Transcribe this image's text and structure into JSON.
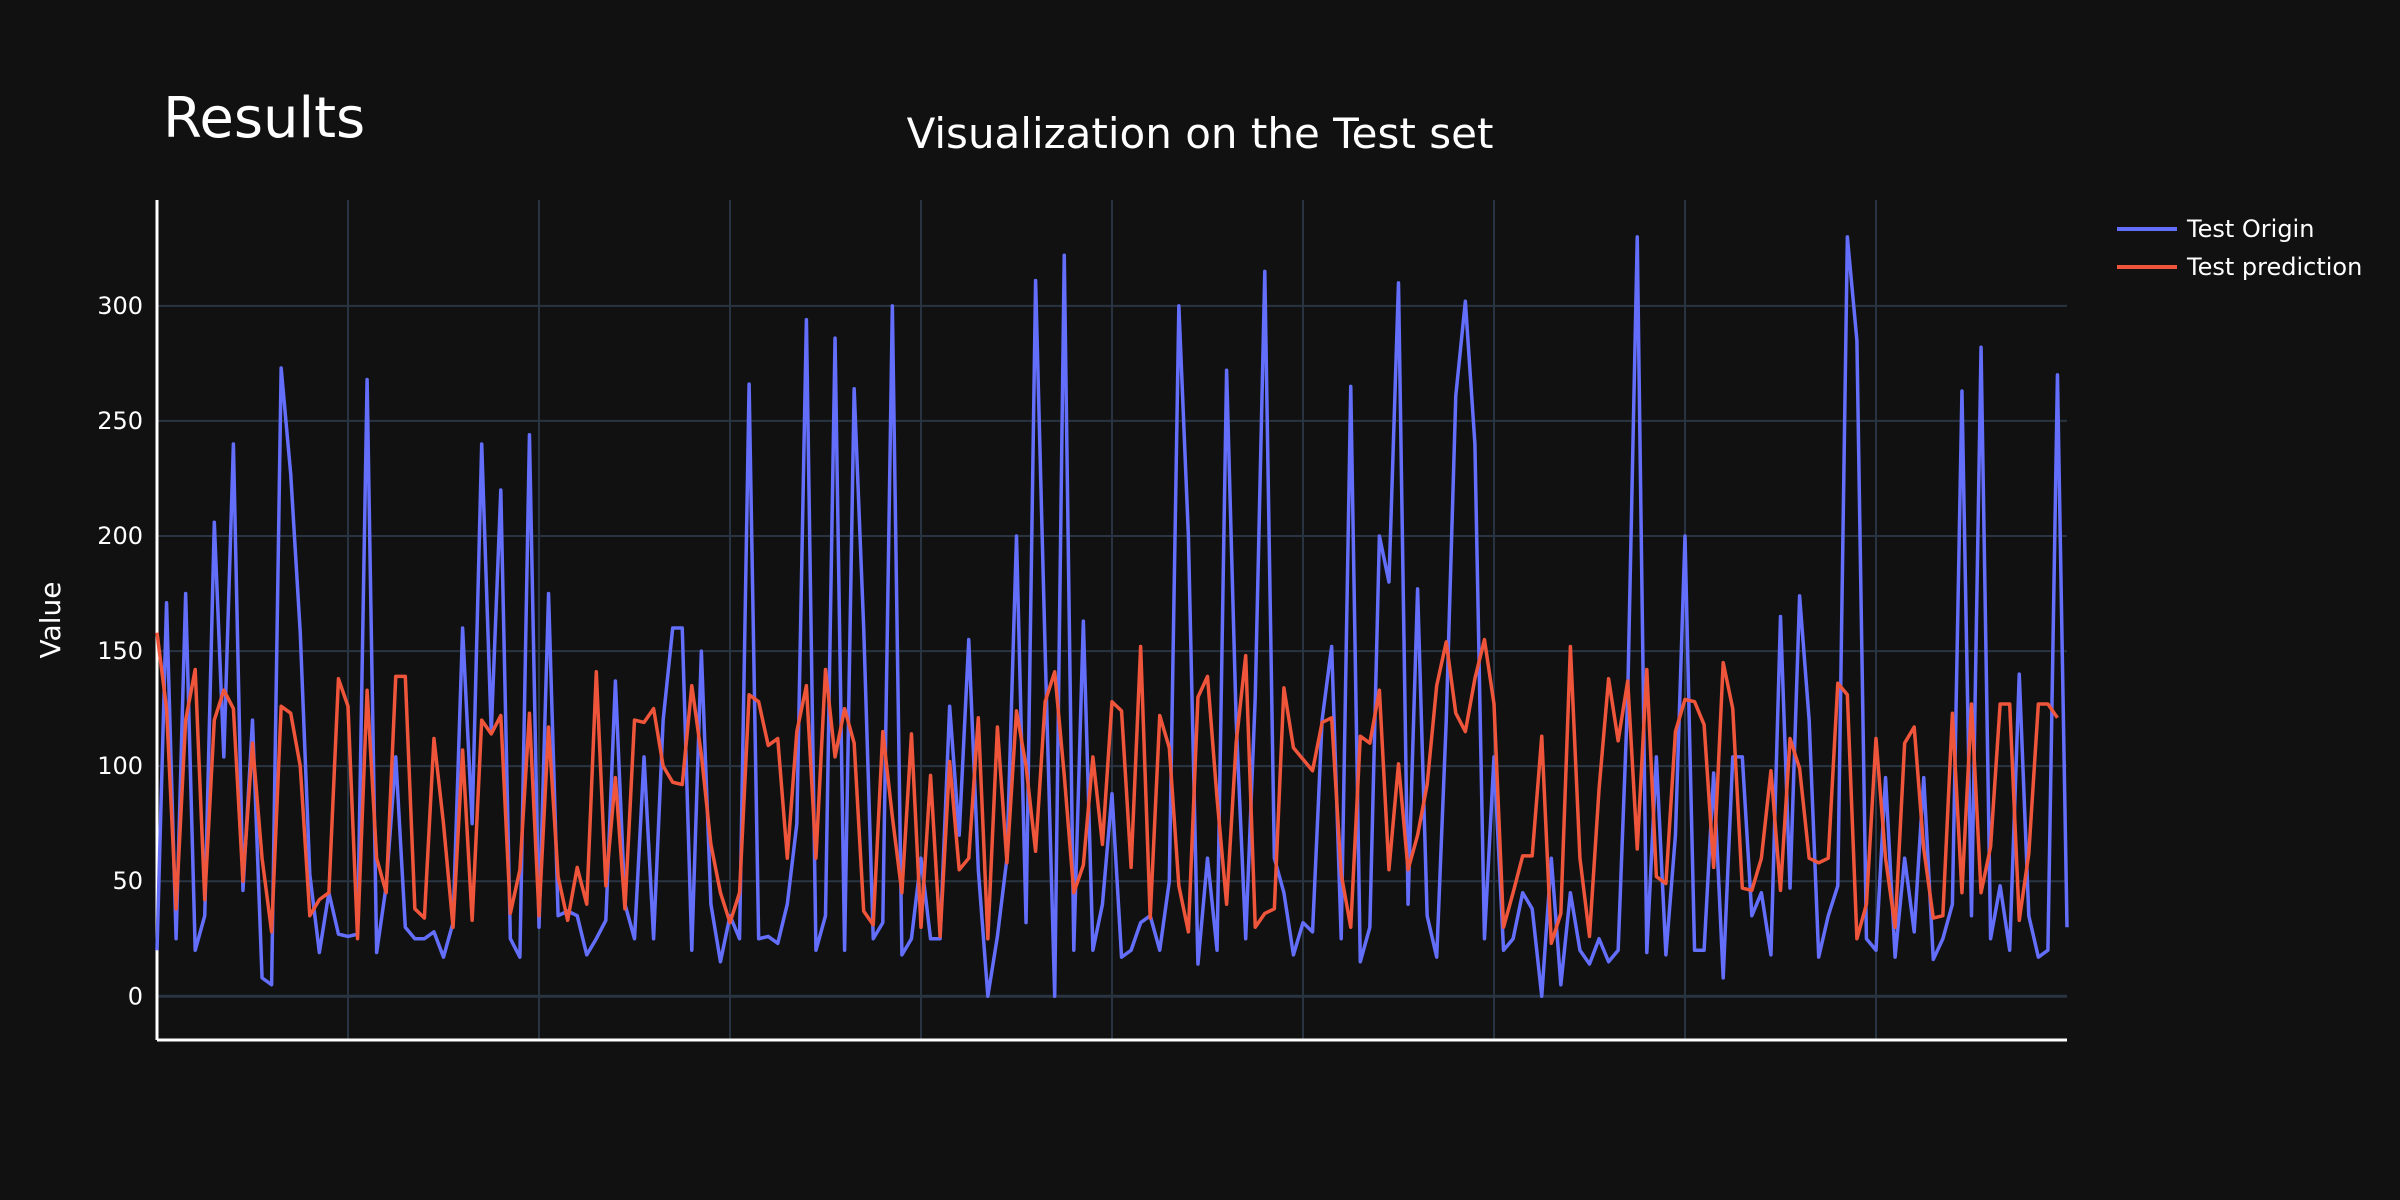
{
  "page": {
    "title": "Results"
  },
  "colors": {
    "background": "#111111",
    "grid": "#283442",
    "origin": "#636efa",
    "prediction": "#ef553b",
    "axis": "#ffffff"
  },
  "chart_data": {
    "type": "line",
    "title": "Visualization on the Test set",
    "xlabel": "",
    "ylabel": "Value",
    "ylim": [
      -19,
      346
    ],
    "xlim": [
      0,
      200
    ],
    "yticks": [
      0,
      50,
      100,
      150,
      200,
      250,
      300
    ],
    "grid": true,
    "legend_position": "top-right",
    "series": [
      {
        "name": "Test Origin",
        "values": [
          20,
          171,
          25,
          175,
          20,
          35,
          206,
          104,
          240,
          46,
          120,
          8,
          5,
          273,
          227,
          158,
          53,
          19,
          45,
          27,
          26,
          27,
          268,
          19,
          48,
          104,
          30,
          25,
          25,
          28,
          17,
          32,
          160,
          75,
          240,
          115,
          220,
          25,
          17,
          244,
          30,
          175,
          35,
          37,
          35,
          18,
          25,
          33,
          137,
          40,
          25,
          104,
          25,
          120,
          160,
          160,
          20,
          150,
          40,
          15,
          35,
          25,
          266,
          25,
          26,
          23,
          40,
          75,
          294,
          20,
          35,
          286,
          20,
          264,
          160,
          25,
          32,
          300,
          18,
          25,
          60,
          25,
          25,
          126,
          70,
          155,
          55,
          0,
          26,
          60,
          200,
          32,
          311,
          150,
          0,
          322,
          20,
          163,
          20,
          40,
          88,
          17,
          20,
          32,
          35,
          20,
          50,
          300,
          200,
          14,
          60,
          20,
          272,
          120,
          25,
          130,
          315,
          60,
          45,
          18,
          32,
          28,
          120,
          152,
          25,
          265,
          15,
          30,
          200,
          180,
          310,
          40,
          177,
          35,
          17,
          120,
          261,
          302,
          240,
          25,
          104,
          20,
          25,
          45,
          38,
          0,
          60,
          5,
          45,
          20,
          14,
          25,
          15,
          20,
          130,
          330,
          19,
          104,
          18,
          70,
          200,
          20,
          20,
          97,
          8,
          104,
          104,
          35,
          45,
          18,
          165,
          47,
          174,
          120,
          17,
          35,
          48,
          330,
          285,
          25,
          20,
          95,
          17,
          60,
          28,
          95,
          16,
          25,
          40,
          263,
          35,
          282,
          25,
          48,
          20,
          140,
          35,
          17,
          20,
          270,
          30
        ]
      },
      {
        "name": "Test prediction",
        "values": [
          158,
          125,
          38,
          120,
          142,
          42,
          120,
          133,
          125,
          50,
          110,
          60,
          28,
          126,
          123,
          100,
          35,
          42,
          45,
          138,
          126,
          25,
          133,
          60,
          45,
          139,
          139,
          38,
          34,
          112,
          75,
          30,
          107,
          33,
          120,
          114,
          122,
          36,
          55,
          123,
          35,
          117,
          52,
          33,
          56,
          40,
          141,
          48,
          95,
          38,
          120,
          119,
          125,
          100,
          93,
          92,
          135,
          105,
          66,
          45,
          32,
          45,
          131,
          128,
          109,
          112,
          60,
          115,
          135,
          60,
          142,
          104,
          125,
          110,
          37,
          31,
          115,
          78,
          45,
          114,
          30,
          96,
          26,
          102,
          55,
          60,
          121,
          25,
          117,
          58,
          124,
          100,
          63,
          128,
          141,
          96,
          45,
          57,
          104,
          66,
          128,
          124,
          56,
          152,
          34,
          122,
          108,
          48,
          28,
          130,
          139,
          86,
          40,
          110,
          148,
          30,
          36,
          38,
          134,
          108,
          103,
          98,
          119,
          121,
          53,
          30,
          113,
          110,
          133,
          55,
          101,
          55,
          70,
          92,
          135,
          154,
          123,
          115,
          138,
          155,
          127,
          30,
          45,
          61,
          61,
          113,
          23,
          36,
          152,
          60,
          26,
          90,
          138,
          111,
          137,
          64,
          142,
          52,
          49,
          115,
          129,
          128,
          118,
          56,
          145,
          125,
          47,
          46,
          60,
          98,
          46,
          112,
          99,
          60,
          58,
          60,
          136,
          131,
          25,
          40,
          112,
          60,
          30,
          110,
          117,
          64,
          34,
          35,
          123,
          45,
          127,
          45,
          65,
          127,
          127,
          33,
          62,
          127,
          127,
          121
        ]
      }
    ]
  }
}
